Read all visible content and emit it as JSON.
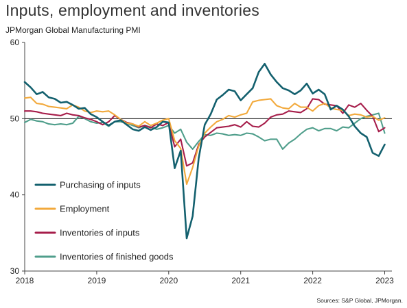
{
  "header": {
    "title": "Inputs, employment and inventories",
    "subtitle": "JPMorgan Global Manufacturing PMI"
  },
  "footer": {
    "source": "Sources: S&P Global, JPMorgan."
  },
  "chart_data": {
    "type": "line",
    "title": "Inputs, employment and inventories",
    "subtitle": "JPMorgan Global Manufacturing PMI",
    "xlim": [
      2018,
      2023.1
    ],
    "ylim": [
      30,
      60
    ],
    "x_ticks": [
      2018,
      2019,
      2020,
      2021,
      2022,
      2023
    ],
    "x_tick_labels": [
      "2018",
      "2019",
      "2020",
      "2021",
      "2022",
      "2023"
    ],
    "y_ticks": [
      30,
      40,
      50,
      60
    ],
    "y_tick_labels": [
      "30",
      "40",
      "50",
      "60"
    ],
    "reference_line": 50,
    "legend_position": "left-middle",
    "x": [
      2018.0,
      2018.083,
      2018.167,
      2018.25,
      2018.333,
      2018.417,
      2018.5,
      2018.583,
      2018.667,
      2018.75,
      2018.833,
      2018.917,
      2019.0,
      2019.083,
      2019.167,
      2019.25,
      2019.333,
      2019.417,
      2019.5,
      2019.583,
      2019.667,
      2019.75,
      2019.833,
      2019.917,
      2020.0,
      2020.083,
      2020.167,
      2020.25,
      2020.333,
      2020.417,
      2020.5,
      2020.583,
      2020.667,
      2020.75,
      2020.833,
      2020.917,
      2021.0,
      2021.083,
      2021.167,
      2021.25,
      2021.333,
      2021.417,
      2021.5,
      2021.583,
      2021.667,
      2021.75,
      2021.833,
      2021.917,
      2022.0,
      2022.083,
      2022.167,
      2022.25,
      2022.333,
      2022.417,
      2022.5,
      2022.583,
      2022.667,
      2022.75,
      2022.833,
      2022.917,
      2023.0
    ],
    "series": [
      {
        "name": "Purchasing of inputs",
        "color": "#13606e",
        "values": [
          54.8,
          54.1,
          53.2,
          53.5,
          52.8,
          52.6,
          52.1,
          52.2,
          51.8,
          51.3,
          51.4,
          50.6,
          50.2,
          49.6,
          49.1,
          49.6,
          49.8,
          49.2,
          48.6,
          48.4,
          48.9,
          48.5,
          48.9,
          49.6,
          49.5,
          43.5,
          45.8,
          34.3,
          37.2,
          44.8,
          49.2,
          50.6,
          52.5,
          53.1,
          53.8,
          53.6,
          52.4,
          53.2,
          54.0,
          56.1,
          57.2,
          55.8,
          54.8,
          54.0,
          53.7,
          53.2,
          53.7,
          54.6,
          53.3,
          53.8,
          53.2,
          51.2,
          51.7,
          51.2,
          50.3,
          49.0,
          48.1,
          47.6,
          45.5,
          45.1,
          46.6
        ]
      },
      {
        "name": "Employment",
        "color": "#f2a93b",
        "values": [
          52.7,
          52.8,
          52.0,
          51.9,
          51.6,
          51.5,
          51.4,
          51.3,
          51.8,
          51.5,
          51.0,
          50.8,
          51.0,
          50.9,
          51.0,
          50.5,
          49.9,
          49.4,
          49.3,
          49.0,
          49.6,
          49.1,
          49.4,
          49.8,
          50.0,
          47.1,
          46.1,
          41.4,
          43.6,
          46.4,
          48.1,
          48.9,
          49.6,
          49.9,
          50.4,
          50.2,
          50.5,
          50.7,
          52.2,
          52.4,
          52.5,
          52.6,
          51.7,
          51.4,
          51.3,
          52.0,
          51.5,
          51.5,
          51.0,
          51.7,
          52.0,
          51.4,
          51.2,
          51.1,
          50.4,
          50.6,
          50.5,
          50.2,
          50.3,
          49.8,
          50.1
        ]
      },
      {
        "name": "Inventories of inputs",
        "color": "#a61d4a",
        "values": [
          51.0,
          51.0,
          50.9,
          50.7,
          50.6,
          50.5,
          50.4,
          50.7,
          50.5,
          50.4,
          50.1,
          49.9,
          49.6,
          49.2,
          49.6,
          50.4,
          49.9,
          49.5,
          49.3,
          48.9,
          49.1,
          48.8,
          49.3,
          49.1,
          49.5,
          46.3,
          47.3,
          43.8,
          44.2,
          46.6,
          47.6,
          48.2,
          48.8,
          48.9,
          49.0,
          49.2,
          48.9,
          49.6,
          49.0,
          48.9,
          49.4,
          50.2,
          50.5,
          50.6,
          51.0,
          50.9,
          50.8,
          51.3,
          52.6,
          52.5,
          51.9,
          51.8,
          51.7,
          50.7,
          51.8,
          51.5,
          52.0,
          51.1,
          50.3,
          48.3,
          48.8
        ]
      },
      {
        "name": "Inventories of finished goods",
        "color": "#4f9e8b",
        "values": [
          49.5,
          49.9,
          49.7,
          49.6,
          49.3,
          49.2,
          49.3,
          49.2,
          49.4,
          50.3,
          50.0,
          49.6,
          49.4,
          49.5,
          49.0,
          49.6,
          49.6,
          49.4,
          49.1,
          48.8,
          49.1,
          48.9,
          48.6,
          48.8,
          49.1,
          48.1,
          48.6,
          46.9,
          46.0,
          47.0,
          47.9,
          47.8,
          48.1,
          48.0,
          47.8,
          47.9,
          47.8,
          48.1,
          48.0,
          47.6,
          47.1,
          47.3,
          47.3,
          46.0,
          46.8,
          47.3,
          48.0,
          48.6,
          48.8,
          48.4,
          48.7,
          48.7,
          48.4,
          48.9,
          48.8,
          49.4,
          50.0,
          50.3,
          50.5,
          50.7,
          48.1
        ]
      }
    ]
  }
}
